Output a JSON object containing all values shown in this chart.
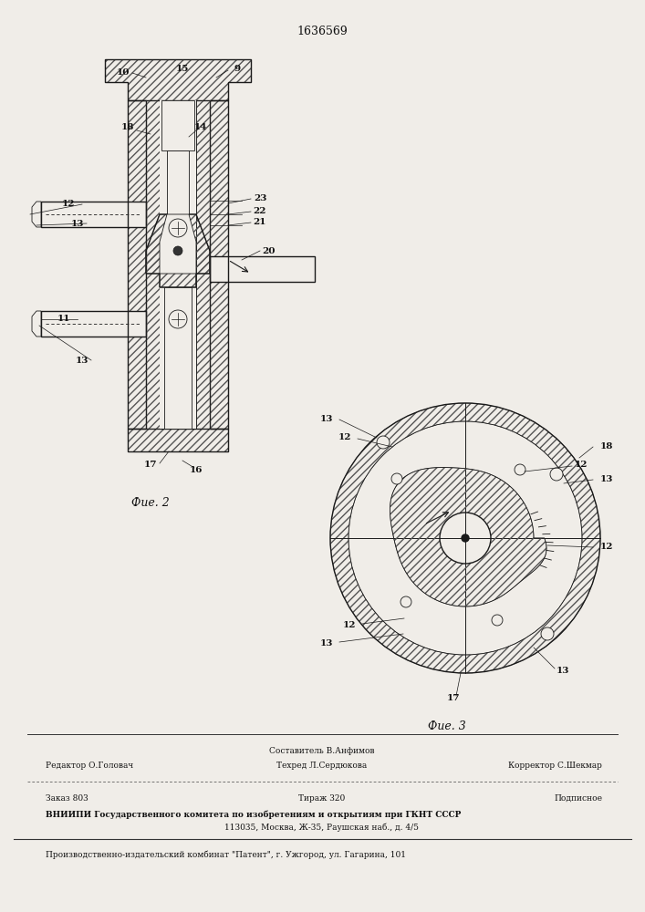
{
  "patent_number": "1636569",
  "bg_color": "#f0ede8",
  "fig2_label": "Фие. 2",
  "fig3_label": "Фие. 3",
  "footer_line1_left": "Редактор О.Головач",
  "footer_compose1": "Составитель В.Анфимов",
  "footer_compose2": "Техред Л.Сердюкова",
  "footer_correct": "Корректор С.Шекмар",
  "footer_order": "Заказ 803",
  "footer_tirazh": "Тираж 320",
  "footer_podp": "Подписное",
  "footer_vniipo": "ВНИИПИ Государственного комитета по изобретениям и открытиям при ГКНТ СССР",
  "footer_addr": "113035, Москва, Ж-35, Раушская наб., д. 4/5",
  "footer_patent": "Производственно-издательский комбинат \"Патент\", г. Ужгород, ул. Гагарина, 101",
  "lc": "#1a1a1a"
}
